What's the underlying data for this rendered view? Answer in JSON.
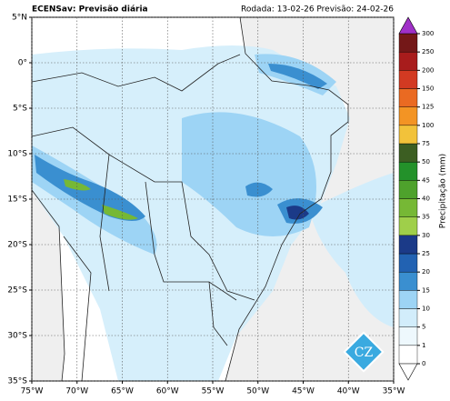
{
  "header": {
    "title": "ECENSav: Previsão diária",
    "run": "Rodada: 13-02-26 Previsão: 24-02-26"
  },
  "map": {
    "xlim": [
      -75,
      -35
    ],
    "ylim": [
      -35,
      5
    ],
    "xticks": [
      {
        "value": -75,
        "label": "75°W"
      },
      {
        "value": -70,
        "label": "70°W"
      },
      {
        "value": -65,
        "label": "65°W"
      },
      {
        "value": -60,
        "label": "60°W"
      },
      {
        "value": -55,
        "label": "55°W"
      },
      {
        "value": -50,
        "label": "50°W"
      },
      {
        "value": -45,
        "label": "45°W"
      },
      {
        "value": -40,
        "label": "40°W"
      },
      {
        "value": -35,
        "label": "35°W"
      }
    ],
    "yticks": [
      {
        "value": 5,
        "label": "5°N"
      },
      {
        "value": 0,
        "label": "0°"
      },
      {
        "value": -5,
        "label": "5°S"
      },
      {
        "value": -10,
        "label": "10°S"
      },
      {
        "value": -15,
        "label": "15°S"
      },
      {
        "value": -20,
        "label": "20°S"
      },
      {
        "value": -25,
        "label": "25°S"
      },
      {
        "value": -30,
        "label": "30°S"
      },
      {
        "value": -35,
        "label": "35°S"
      }
    ]
  },
  "colorbar": {
    "label": "Precipitação (mm)",
    "levels": [
      0,
      1,
      5,
      10,
      15,
      20,
      25,
      30,
      35,
      40,
      45,
      50,
      75,
      100,
      125,
      150,
      200,
      250,
      300
    ],
    "colors": [
      "#ffffff",
      "#eef8fd",
      "#d2edfb",
      "#9dd4f5",
      "#3a8fd0",
      "#2262b2",
      "#1b3a88",
      "#9fcf4a",
      "#76b835",
      "#4ea22c",
      "#23912a",
      "#3c5e22",
      "#f2c23a",
      "#f39424",
      "#ea6a22",
      "#d23a22",
      "#a81c1c",
      "#741818"
    ],
    "over_color": "#a030c8"
  },
  "logo": "CZ"
}
